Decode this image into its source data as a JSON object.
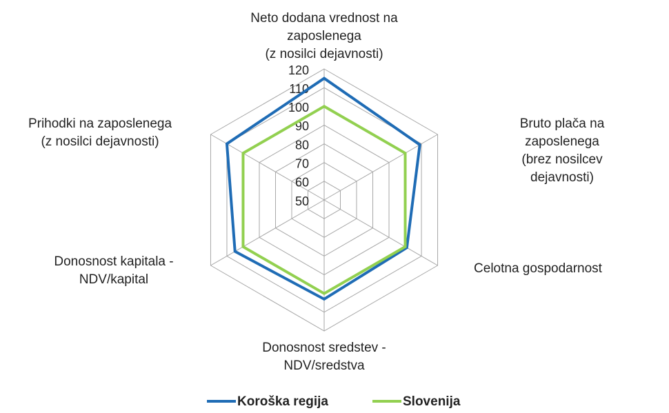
{
  "chart_data": {
    "type": "radar",
    "categories": [
      "Neto dodana vrednost na\nzaposlenega\n(z nosilci dejavnosti)",
      "Bruto plača na zaposlenega\n(brez nosilcev dejavnosti)",
      "Celotna gospodarnost",
      "Donosnost sredstev -\nNDV/sredstva",
      "Donosnost kapitala -\nNDV/kapital",
      "Prihodki na zaposlenega\n(z nosilci dejavnosti)"
    ],
    "series": [
      {
        "name": "Koroška regija",
        "color": "#1f6cb5",
        "values": [
          115,
          109,
          101,
          103,
          105,
          110
        ]
      },
      {
        "name": "Slovenija",
        "color": "#92d050",
        "values": [
          100,
          100,
          100,
          100,
          100,
          100
        ]
      }
    ],
    "ylim": [
      50,
      120
    ],
    "yticks": [
      50,
      60,
      70,
      80,
      90,
      100,
      110,
      120
    ],
    "grid": true,
    "legend": "bottom"
  }
}
